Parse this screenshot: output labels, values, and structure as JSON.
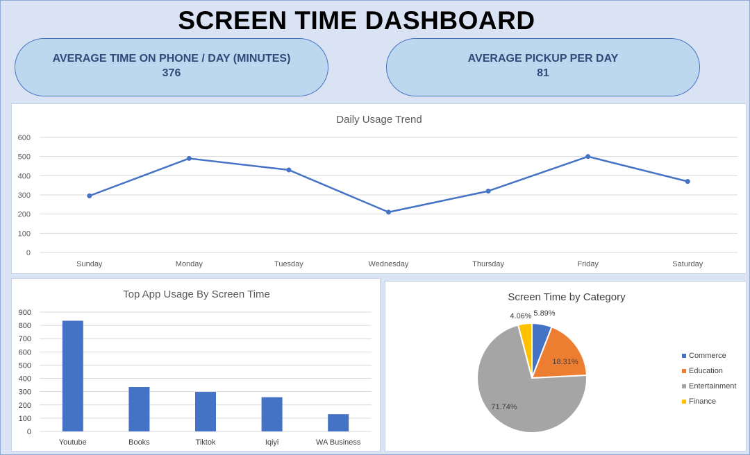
{
  "header": {
    "title": "SCREEN TIME DASHBOARD"
  },
  "kpis": [
    {
      "label": "AVERAGE TIME ON PHONE / DAY (MINUTES)",
      "value": "376"
    },
    {
      "label": "AVERAGE PICKUP PER DAY",
      "value": "81"
    }
  ],
  "colors": {
    "series": "#4472c4",
    "grid": "#d9d9d9",
    "axis_text": "#595959",
    "pie": [
      "#4472c4",
      "#ed7d31",
      "#a5a5a5",
      "#ffc000"
    ]
  },
  "chart_data": [
    {
      "type": "line",
      "title": "Daily  Usage Trend",
      "categories": [
        "Sunday",
        "Monday",
        "Tuesday",
        "Wednesday",
        "Thursday",
        "Friday",
        "Saturday"
      ],
      "values": [
        295,
        490,
        430,
        210,
        320,
        500,
        370
      ],
      "ylim": [
        0,
        600
      ],
      "yticks": [
        0,
        100,
        200,
        300,
        400,
        500,
        600
      ]
    },
    {
      "type": "bar",
      "title": "Top App Usage By Screen Time",
      "categories": [
        "Youtube",
        "Books",
        "Tiktok",
        "Iqiyi",
        "WA Business"
      ],
      "values": [
        835,
        335,
        298,
        258,
        130
      ],
      "ylim": [
        0,
        900
      ],
      "yticks": [
        0,
        100,
        200,
        300,
        400,
        500,
        600,
        700,
        800,
        900
      ]
    },
    {
      "type": "pie",
      "title": "Screen Time by Category",
      "labels": [
        "Commerce",
        "Education",
        "Entertainment",
        "Finance"
      ],
      "values": [
        5.89,
        18.31,
        71.74,
        4.06
      ],
      "data_labels": [
        "5.89%",
        "18.31%",
        "71.74%",
        "4.06%"
      ],
      "legend": "right"
    }
  ]
}
